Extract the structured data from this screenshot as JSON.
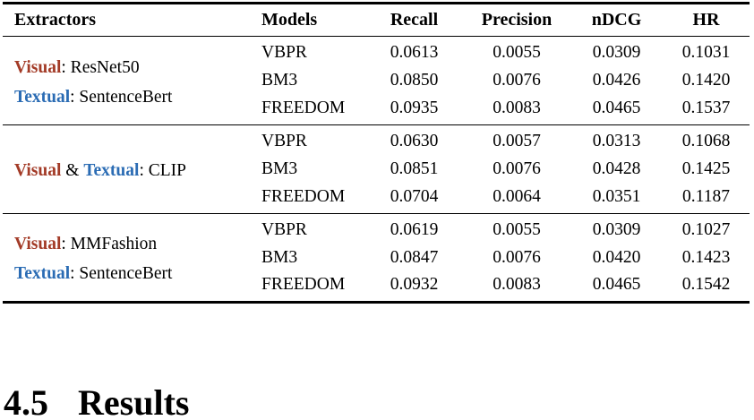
{
  "colors": {
    "visual": "#A33B27",
    "textual": "#2B6CB4",
    "rule": "#000000",
    "text": "#000000",
    "background": "#FFFFFF"
  },
  "table": {
    "headers": [
      {
        "label": "Extractors",
        "align": "extractors"
      },
      {
        "label": "Models",
        "align": "models"
      },
      {
        "label": "Recall",
        "align": "num"
      },
      {
        "label": "Precision",
        "align": "num"
      },
      {
        "label": "nDCG",
        "align": "num"
      },
      {
        "label": "HR",
        "align": "num"
      }
    ],
    "groups": [
      {
        "extractor_lines": [
          [
            {
              "t": "Visual",
              "s": "visual"
            },
            {
              "t": ": ResNet50",
              "s": "plain"
            }
          ],
          [
            {
              "t": "Textual",
              "s": "textual"
            },
            {
              "t": ": SentenceBert",
              "s": "plain"
            }
          ]
        ],
        "rows": [
          {
            "model": "VBPR",
            "recall": "0.0613",
            "precision": "0.0055",
            "ndcg": "0.0309",
            "hr": "0.1031"
          },
          {
            "model": "BM3",
            "recall": "0.0850",
            "precision": "0.0076",
            "ndcg": "0.0426",
            "hr": "0.1420"
          },
          {
            "model": "FREEDOM",
            "recall": "0.0935",
            "precision": "0.0083",
            "ndcg": "0.0465",
            "hr": "0.1537"
          }
        ]
      },
      {
        "extractor_lines": [
          [
            {
              "t": "Visual",
              "s": "visual"
            },
            {
              "t": " & ",
              "s": "plain"
            },
            {
              "t": "Textual",
              "s": "textual"
            },
            {
              "t": ": CLIP",
              "s": "plain"
            }
          ]
        ],
        "rows": [
          {
            "model": "VBPR",
            "recall": "0.0630",
            "precision": "0.0057",
            "ndcg": "0.0313",
            "hr": "0.1068"
          },
          {
            "model": "BM3",
            "recall": "0.0851",
            "precision": "0.0076",
            "ndcg": "0.0428",
            "hr": "0.1425"
          },
          {
            "model": "FREEDOM",
            "recall": "0.0704",
            "precision": "0.0064",
            "ndcg": "0.0351",
            "hr": "0.1187"
          }
        ]
      },
      {
        "extractor_lines": [
          [
            {
              "t": "Visual",
              "s": "visual"
            },
            {
              "t": ": MMFashion",
              "s": "plain"
            }
          ],
          [
            {
              "t": "Textual",
              "s": "textual"
            },
            {
              "t": ": SentenceBert",
              "s": "plain"
            }
          ]
        ],
        "rows": [
          {
            "model": "VBPR",
            "recall": "0.0619",
            "precision": "0.0055",
            "ndcg": "0.0309",
            "hr": "0.1027"
          },
          {
            "model": "BM3",
            "recall": "0.0847",
            "precision": "0.0076",
            "ndcg": "0.0420",
            "hr": "0.1423"
          },
          {
            "model": "FREEDOM",
            "recall": "0.0932",
            "precision": "0.0083",
            "ndcg": "0.0465",
            "hr": "0.1542"
          }
        ]
      }
    ]
  },
  "section": {
    "number": "4.5",
    "title": "Results"
  }
}
